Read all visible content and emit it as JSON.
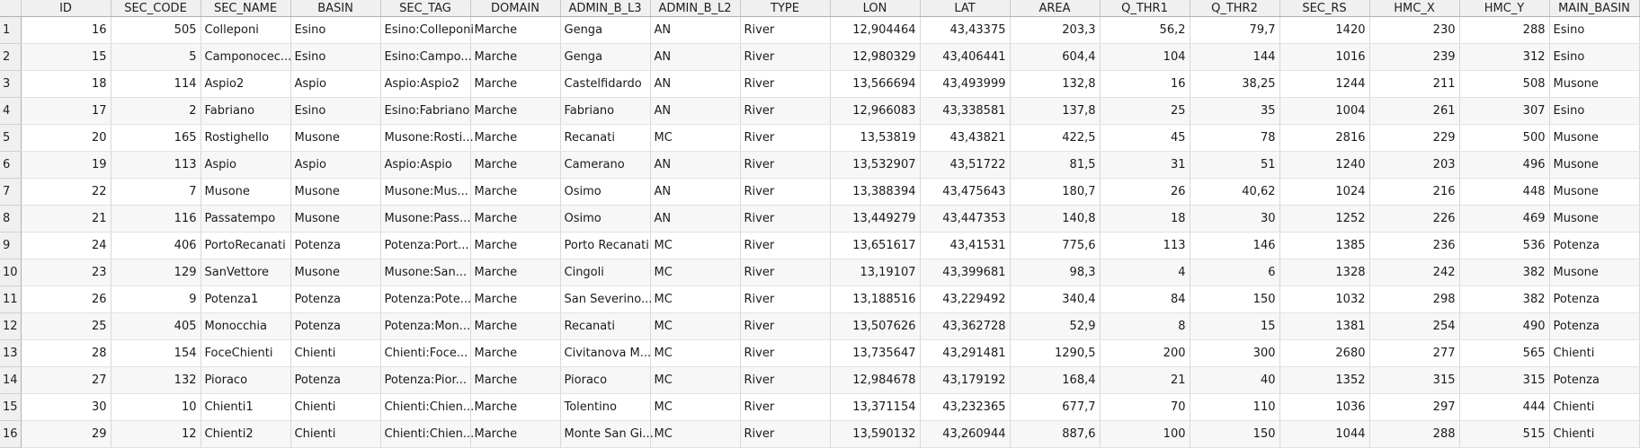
{
  "table": {
    "columns": [
      {
        "key": "ID",
        "label": "ID"
      },
      {
        "key": "SEC_CODE",
        "label": "SEC_CODE"
      },
      {
        "key": "SEC_NAME",
        "label": "SEC_NAME"
      },
      {
        "key": "BASIN",
        "label": "BASIN"
      },
      {
        "key": "SEC_TAG",
        "label": "SEC_TAG"
      },
      {
        "key": "DOMAIN",
        "label": "DOMAIN"
      },
      {
        "key": "ADMIN_B_L3",
        "label": "ADMIN_B_L3"
      },
      {
        "key": "ADMIN_B_L2",
        "label": "ADMIN_B_L2"
      },
      {
        "key": "TYPE",
        "label": "TYPE"
      },
      {
        "key": "LON",
        "label": "LON"
      },
      {
        "key": "LAT",
        "label": "LAT"
      },
      {
        "key": "AREA",
        "label": "AREA"
      },
      {
        "key": "Q_THR1",
        "label": "Q_THR1"
      },
      {
        "key": "Q_THR2",
        "label": "Q_THR2"
      },
      {
        "key": "SEC_RS",
        "label": "SEC_RS"
      },
      {
        "key": "HMC_X",
        "label": "HMC_X"
      },
      {
        "key": "HMC_Y",
        "label": "HMC_Y"
      },
      {
        "key": "MAIN_BASIN",
        "label": "MAIN_BASIN"
      }
    ],
    "rows": [
      {
        "n": "1",
        "cells": [
          "16",
          "505",
          "Colleponi",
          "Esino",
          "Esino:Colleponi",
          "Marche",
          "Genga",
          "AN",
          "River",
          "12,904464",
          "43,43375",
          "203,3",
          "56,2",
          "79,7",
          "1420",
          "230",
          "288",
          "Esino"
        ]
      },
      {
        "n": "2",
        "cells": [
          "15",
          "5",
          "Camponocec...",
          "Esino",
          "Esino:Campo...",
          "Marche",
          "Genga",
          "AN",
          "River",
          "12,980329",
          "43,406441",
          "604,4",
          "104",
          "144",
          "1016",
          "239",
          "312",
          "Esino"
        ]
      },
      {
        "n": "3",
        "cells": [
          "18",
          "114",
          "Aspio2",
          "Aspio",
          "Aspio:Aspio2",
          "Marche",
          "Castelfidardo",
          "AN",
          "River",
          "13,566694",
          "43,493999",
          "132,8",
          "16",
          "38,25",
          "1244",
          "211",
          "508",
          "Musone"
        ]
      },
      {
        "n": "4",
        "cells": [
          "17",
          "2",
          "Fabriano",
          "Esino",
          "Esino:Fabriano",
          "Marche",
          "Fabriano",
          "AN",
          "River",
          "12,966083",
          "43,338581",
          "137,8",
          "25",
          "35",
          "1004",
          "261",
          "307",
          "Esino"
        ]
      },
      {
        "n": "5",
        "cells": [
          "20",
          "165",
          "Rostighello",
          "Musone",
          "Musone:Rosti...",
          "Marche",
          "Recanati",
          "MC",
          "River",
          "13,53819",
          "43,43821",
          "422,5",
          "45",
          "78",
          "2816",
          "229",
          "500",
          "Musone"
        ]
      },
      {
        "n": "6",
        "cells": [
          "19",
          "113",
          "Aspio",
          "Aspio",
          "Aspio:Aspio",
          "Marche",
          "Camerano",
          "AN",
          "River",
          "13,532907",
          "43,51722",
          "81,5",
          "31",
          "51",
          "1240",
          "203",
          "496",
          "Musone"
        ]
      },
      {
        "n": "7",
        "cells": [
          "22",
          "7",
          "Musone",
          "Musone",
          "Musone:Mus...",
          "Marche",
          "Osimo",
          "AN",
          "River",
          "13,388394",
          "43,475643",
          "180,7",
          "26",
          "40,62",
          "1024",
          "216",
          "448",
          "Musone"
        ]
      },
      {
        "n": "8",
        "cells": [
          "21",
          "116",
          "Passatempo",
          "Musone",
          "Musone:Pass...",
          "Marche",
          "Osimo",
          "AN",
          "River",
          "13,449279",
          "43,447353",
          "140,8",
          "18",
          "30",
          "1252",
          "226",
          "469",
          "Musone"
        ]
      },
      {
        "n": "9",
        "cells": [
          "24",
          "406",
          "PortoRecanati",
          "Potenza",
          "Potenza:Port...",
          "Marche",
          "Porto Recanati",
          "MC",
          "River",
          "13,651617",
          "43,41531",
          "775,6",
          "113",
          "146",
          "1385",
          "236",
          "536",
          "Potenza"
        ]
      },
      {
        "n": "10",
        "cells": [
          "23",
          "129",
          "SanVettore",
          "Musone",
          "Musone:San...",
          "Marche",
          "Cingoli",
          "MC",
          "River",
          "13,19107",
          "43,399681",
          "98,3",
          "4",
          "6",
          "1328",
          "242",
          "382",
          "Musone"
        ]
      },
      {
        "n": "11",
        "cells": [
          "26",
          "9",
          "Potenza1",
          "Potenza",
          "Potenza:Pote...",
          "Marche",
          "San Severino...",
          "MC",
          "River",
          "13,188516",
          "43,229492",
          "340,4",
          "84",
          "150",
          "1032",
          "298",
          "382",
          "Potenza"
        ]
      },
      {
        "n": "12",
        "cells": [
          "25",
          "405",
          "Monocchia",
          "Potenza",
          "Potenza:Mon...",
          "Marche",
          "Recanati",
          "MC",
          "River",
          "13,507626",
          "43,362728",
          "52,9",
          "8",
          "15",
          "1381",
          "254",
          "490",
          "Potenza"
        ]
      },
      {
        "n": "13",
        "cells": [
          "28",
          "154",
          "FoceChienti",
          "Chienti",
          "Chienti:Foce...",
          "Marche",
          "Civitanova M...",
          "MC",
          "River",
          "13,735647",
          "43,291481",
          "1290,5",
          "200",
          "300",
          "2680",
          "277",
          "565",
          "Chienti"
        ]
      },
      {
        "n": "14",
        "cells": [
          "27",
          "132",
          "Pioraco",
          "Potenza",
          "Potenza:Pior...",
          "Marche",
          "Pioraco",
          "MC",
          "River",
          "12,984678",
          "43,179192",
          "168,4",
          "21",
          "40",
          "1352",
          "315",
          "315",
          "Potenza"
        ]
      },
      {
        "n": "15",
        "cells": [
          "30",
          "10",
          "Chienti1",
          "Chienti",
          "Chienti:Chien...",
          "Marche",
          "Tolentino",
          "MC",
          "River",
          "13,371154",
          "43,232365",
          "677,7",
          "70",
          "110",
          "1036",
          "297",
          "444",
          "Chienti"
        ]
      },
      {
        "n": "16",
        "cells": [
          "29",
          "12",
          "Chienti2",
          "Chienti",
          "Chienti:Chien...",
          "Marche",
          "Monte San Gi...",
          "MC",
          "River",
          "13,590132",
          "43,260944",
          "887,6",
          "100",
          "150",
          "1044",
          "288",
          "515",
          "Chienti"
        ]
      }
    ]
  }
}
